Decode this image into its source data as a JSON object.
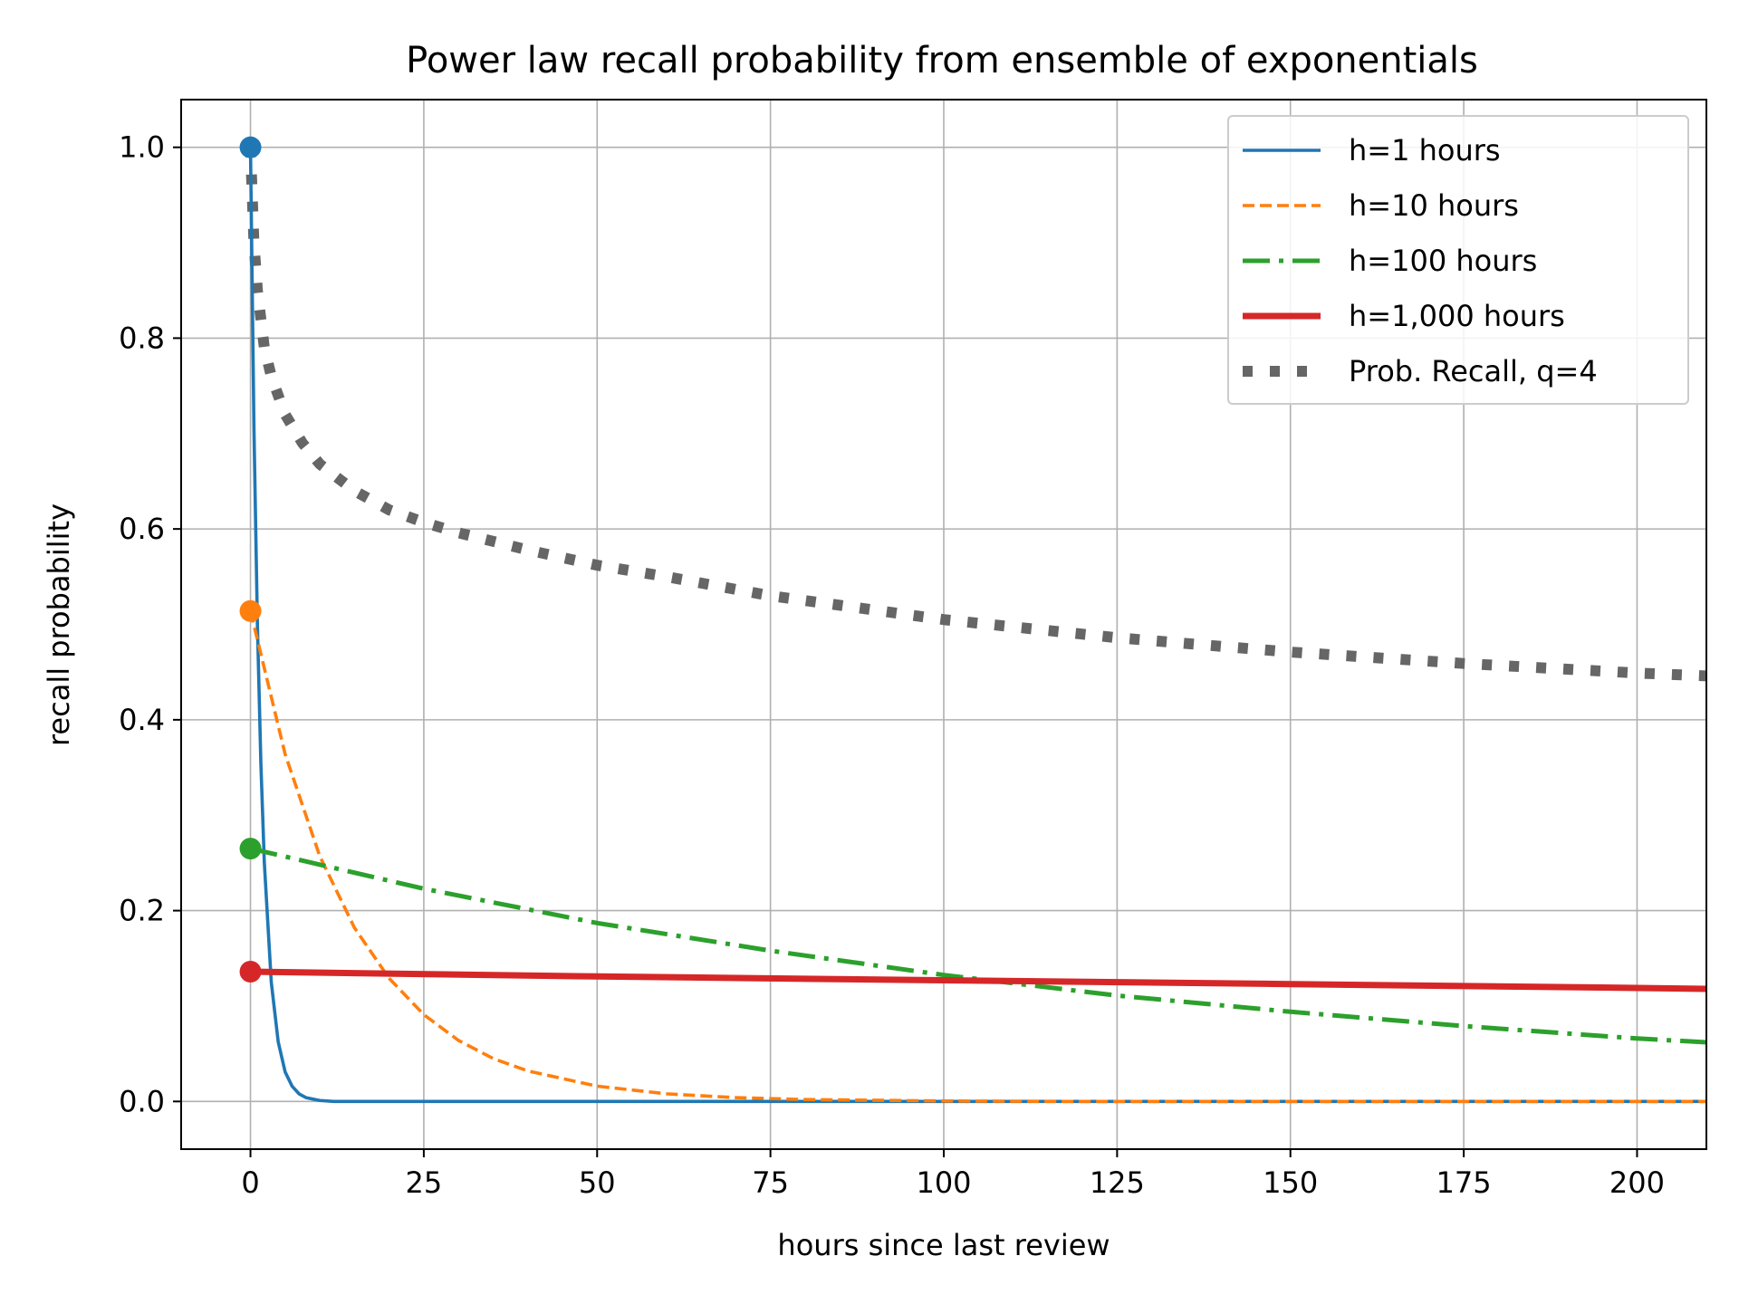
{
  "chart_data": {
    "type": "line",
    "title": "Power law recall probability from ensemble of exponentials",
    "xlabel": "hours since last review",
    "ylabel": "recall probability",
    "xlim": [
      -10,
      210
    ],
    "ylim": [
      -0.05,
      1.05
    ],
    "xticks": [
      0,
      25,
      50,
      75,
      100,
      125,
      150,
      175,
      200
    ],
    "xtick_labels": [
      "0",
      "25",
      "50",
      "75",
      "100",
      "125",
      "150",
      "175",
      "200"
    ],
    "yticks": [
      0.0,
      0.2,
      0.4,
      0.6,
      0.8,
      1.0
    ],
    "ytick_labels": [
      "0.0",
      "0.2",
      "0.4",
      "0.6",
      "0.8",
      "1.0"
    ],
    "grid": true,
    "legend_position": "top-right",
    "series": [
      {
        "name": "h=1 hours",
        "color": "#1f77b4",
        "style": "solid",
        "marker_at_start": true,
        "points": [
          [
            0,
            1.0
          ],
          [
            0.5,
            0.707
          ],
          [
            1,
            0.5
          ],
          [
            1.5,
            0.354
          ],
          [
            2,
            0.25
          ],
          [
            3,
            0.125
          ],
          [
            4,
            0.0625
          ],
          [
            5,
            0.031
          ],
          [
            6,
            0.016
          ],
          [
            7,
            0.008
          ],
          [
            8,
            0.004
          ],
          [
            10,
            0.001
          ],
          [
            12,
            0.0
          ],
          [
            20,
            0.0
          ],
          [
            50,
            0.0
          ],
          [
            100,
            0.0
          ],
          [
            150,
            0.0
          ],
          [
            210,
            0.0
          ]
        ]
      },
      {
        "name": "h=10 hours",
        "color": "#ff7f0e",
        "style": "dashed",
        "marker_at_start": true,
        "points": [
          [
            0,
            0.514
          ],
          [
            5,
            0.364
          ],
          [
            10,
            0.257
          ],
          [
            15,
            0.182
          ],
          [
            20,
            0.129
          ],
          [
            25,
            0.091
          ],
          [
            30,
            0.064
          ],
          [
            35,
            0.045
          ],
          [
            40,
            0.032
          ],
          [
            50,
            0.016
          ],
          [
            60,
            0.008
          ],
          [
            70,
            0.004
          ],
          [
            80,
            0.002
          ],
          [
            100,
            0.0005
          ],
          [
            120,
            0.0
          ],
          [
            150,
            0.0
          ],
          [
            210,
            0.0
          ]
        ]
      },
      {
        "name": "h=100 hours",
        "color": "#2ca02c",
        "style": "dashdot",
        "marker_at_start": true,
        "points": [
          [
            0,
            0.265
          ],
          [
            25,
            0.223
          ],
          [
            50,
            0.187
          ],
          [
            75,
            0.158
          ],
          [
            100,
            0.1325
          ],
          [
            125,
            0.111
          ],
          [
            150,
            0.094
          ],
          [
            175,
            0.079
          ],
          [
            200,
            0.066
          ],
          [
            210,
            0.062
          ]
        ]
      },
      {
        "name": "h=1,000 hours",
        "color": "#d62728",
        "style": "solid-thick",
        "marker_at_start": true,
        "points": [
          [
            0,
            0.136
          ],
          [
            50,
            0.131
          ],
          [
            100,
            0.127
          ],
          [
            150,
            0.123
          ],
          [
            200,
            0.119
          ],
          [
            210,
            0.118
          ]
        ]
      },
      {
        "name": "Prob. Recall, q=4",
        "color": "#666666",
        "style": "dotted",
        "marker_at_start": false,
        "points": [
          [
            0,
            1.0
          ],
          [
            0.5,
            0.9
          ],
          [
            1,
            0.85
          ],
          [
            2,
            0.79
          ],
          [
            3,
            0.76
          ],
          [
            5,
            0.72
          ],
          [
            7.5,
            0.69
          ],
          [
            10,
            0.668
          ],
          [
            15,
            0.64
          ],
          [
            20,
            0.62
          ],
          [
            25,
            0.607
          ],
          [
            30,
            0.596
          ],
          [
            40,
            0.578
          ],
          [
            50,
            0.562
          ],
          [
            60,
            0.55
          ],
          [
            75,
            0.53
          ],
          [
            100,
            0.505
          ],
          [
            125,
            0.486
          ],
          [
            150,
            0.471
          ],
          [
            175,
            0.459
          ],
          [
            200,
            0.449
          ],
          [
            210,
            0.446
          ]
        ]
      }
    ]
  }
}
